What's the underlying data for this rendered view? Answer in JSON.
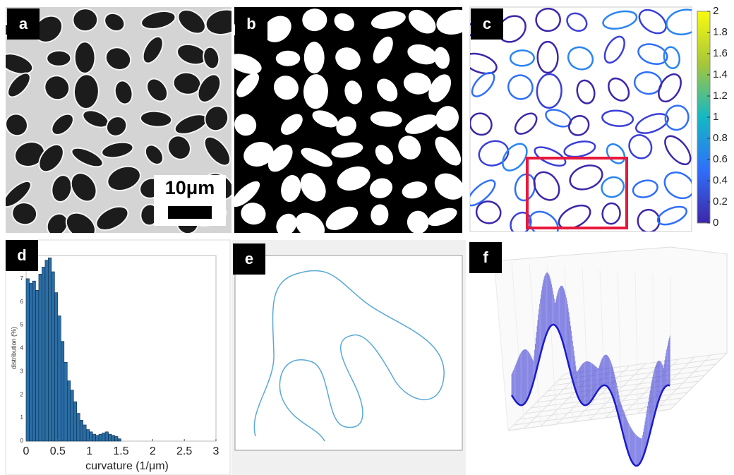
{
  "panels": [
    {
      "label": "a",
      "scale_bar": "10μm"
    },
    {
      "label": "b"
    },
    {
      "label": "c",
      "colorbar": {
        "lim": [
          0,
          2
        ],
        "ticks": [
          0,
          0.2,
          0.4,
          0.6,
          0.8,
          1,
          1.2,
          1.4,
          1.6,
          1.8,
          2
        ]
      }
    },
    {
      "label": "d",
      "histogram": {
        "xlabel": "curvature (1/μm)",
        "ylabel": "distribution (%)",
        "bins": [
          0,
          0.05,
          0.1,
          0.15,
          0.2,
          0.25,
          0.3,
          0.35,
          0.4,
          0.45,
          0.5,
          0.55,
          0.6,
          0.65,
          0.7,
          0.75,
          0.8,
          0.85,
          0.9,
          0.95,
          1,
          1.05,
          1.1,
          1.15,
          1.2,
          1.25,
          1.3,
          1.35,
          1.4,
          1.45,
          1.5
        ],
        "counts": [
          7.0,
          6.8,
          6.9,
          6.5,
          7.2,
          7.5,
          7.8,
          7.9,
          7.3,
          6.4,
          5.4,
          4.3,
          3.4,
          2.6,
          2.2,
          1.7,
          1.2,
          0.9,
          0.7,
          0.5,
          0.4,
          0.3,
          0.25,
          0.3,
          0.35,
          0.4,
          0.3,
          0.25,
          0.2,
          0.1
        ],
        "color": "#2b6ea6",
        "xlim": [
          0,
          3
        ],
        "ylim": [
          0,
          8
        ],
        "xticks": [
          0,
          0.5,
          1,
          1.5,
          2,
          2.5,
          3
        ],
        "yticks": [
          0,
          1,
          2,
          3,
          4,
          5,
          6,
          7
        ]
      }
    },
    {
      "label": "e"
    },
    {
      "label": "f"
    }
  ]
}
